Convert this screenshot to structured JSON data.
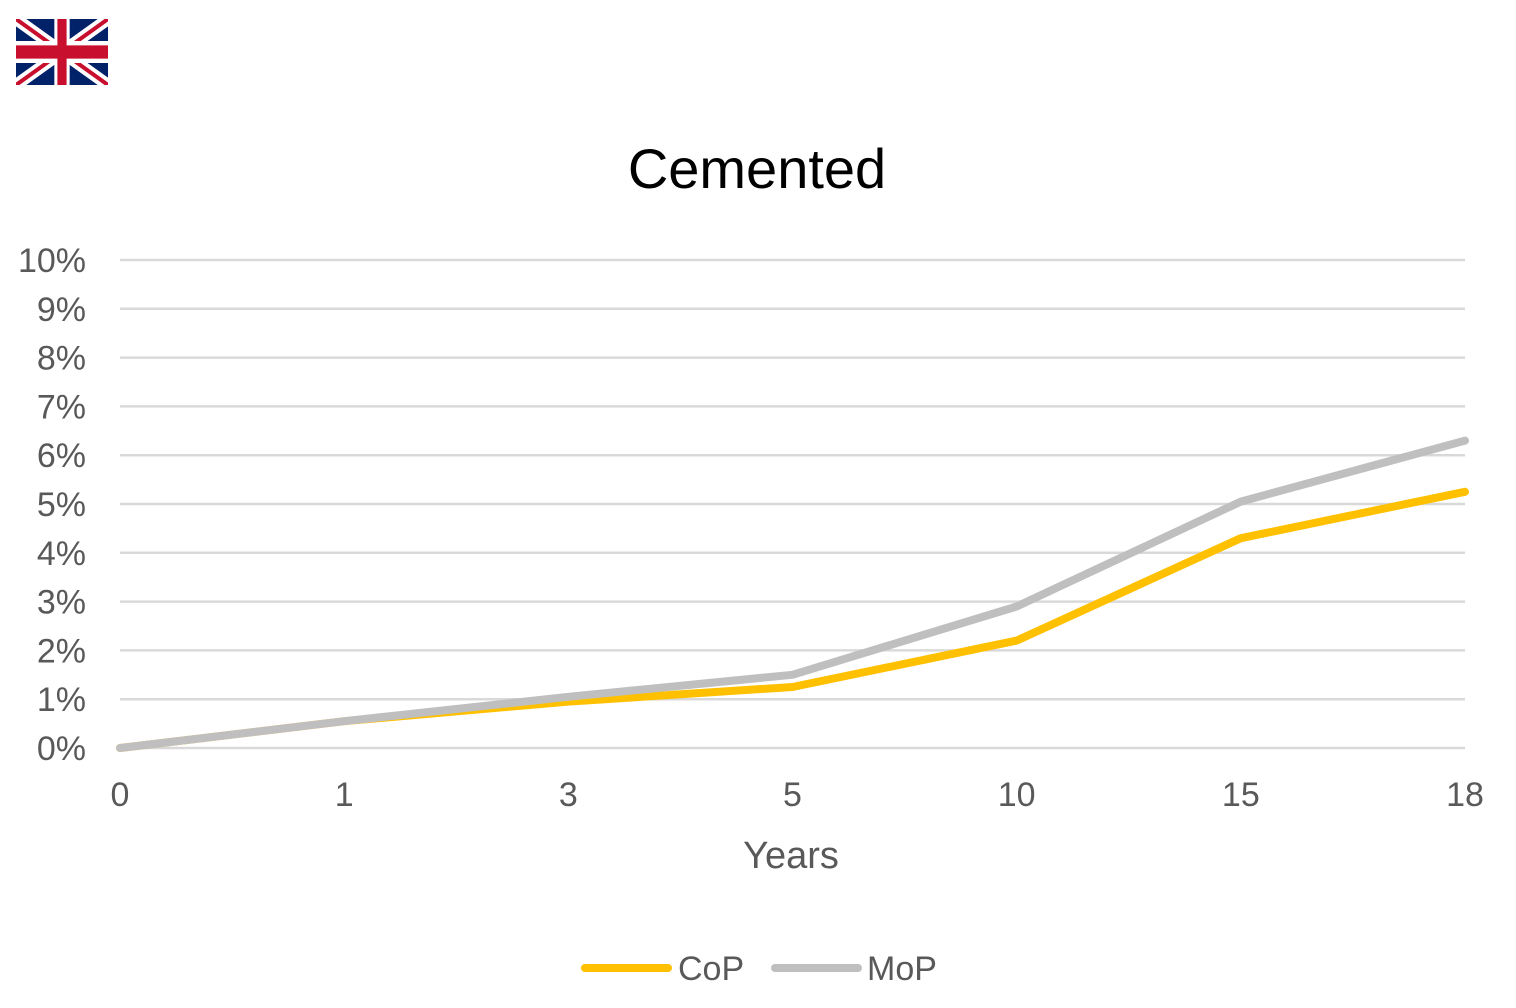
{
  "flag": {
    "icon": "union-jack-flag-icon"
  },
  "chart_data": {
    "type": "line",
    "title": "Cemented",
    "xlabel": "Years",
    "ylabel": "",
    "categories": [
      "0",
      "1",
      "3",
      "5",
      "10",
      "15",
      "18"
    ],
    "yticks": [
      "0%",
      "1%",
      "2%",
      "3%",
      "4%",
      "5%",
      "6%",
      "7%",
      "8%",
      "9%",
      "10%"
    ],
    "ylim": [
      0,
      10
    ],
    "grid": true,
    "legend_position": "bottom",
    "series": [
      {
        "name": "CoP",
        "color": "#FFC000",
        "values": [
          0,
          0.55,
          0.95,
          1.25,
          2.2,
          4.3,
          5.25
        ]
      },
      {
        "name": "MoP",
        "color": "#BFBFBF",
        "values": [
          0,
          0.55,
          1.05,
          1.5,
          2.9,
          5.05,
          6.3
        ]
      }
    ]
  }
}
